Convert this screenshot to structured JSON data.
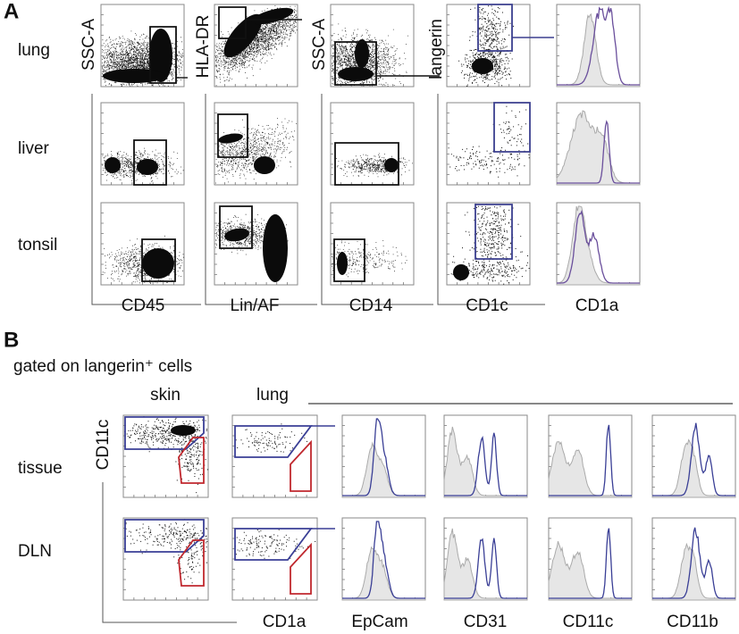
{
  "panel_a": {
    "label": "A",
    "rows": [
      "lung",
      "liver",
      "tonsil"
    ],
    "y_axes": [
      "SSC-A",
      "HLA-DR",
      "SSC-A",
      "langerin"
    ],
    "x_axes": [
      "CD45",
      "Lin/AF",
      "CD14",
      "CD1c",
      "CD1a"
    ]
  },
  "panel_b": {
    "label": "B",
    "subtitle": "gated on langerin⁺ cells",
    "columns": [
      "skin",
      "lung"
    ],
    "y_axis": "CD11c",
    "rows": [
      "tissue",
      "DLN"
    ],
    "x_axes": [
      "CD1a",
      "EpCam",
      "CD31",
      "CD11c",
      "CD11b"
    ]
  }
}
